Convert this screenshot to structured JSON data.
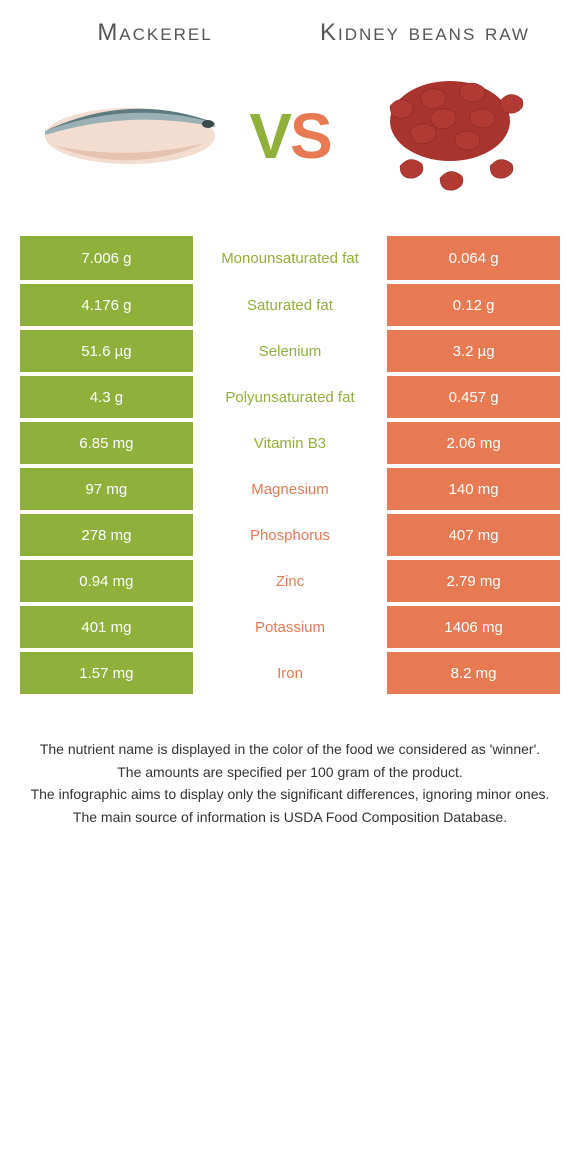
{
  "colors": {
    "left_bg": "#8fb03a",
    "right_bg": "#e77a52",
    "left_text": "#ffffff",
    "right_text": "#ffffff",
    "mid_bg": "#ffffff",
    "page_bg": "#ffffff",
    "heading_color": "#555555",
    "footer_color": "#333333"
  },
  "header": {
    "left_title": "Mackerel",
    "right_title": "Kidney beans raw"
  },
  "vs": {
    "v": "V",
    "s": "S"
  },
  "table": {
    "rows": [
      {
        "left": "7.006 g",
        "name": "Monounsaturated fat",
        "right": "0.064 g",
        "winner": "left"
      },
      {
        "left": "4.176 g",
        "name": "Saturated fat",
        "right": "0.12 g",
        "winner": "left"
      },
      {
        "left": "51.6 µg",
        "name": "Selenium",
        "right": "3.2 µg",
        "winner": "left"
      },
      {
        "left": "4.3 g",
        "name": "Polyunsaturated fat",
        "right": "0.457 g",
        "winner": "left"
      },
      {
        "left": "6.85 mg",
        "name": "Vitamin B3",
        "right": "2.06 mg",
        "winner": "left"
      },
      {
        "left": "97 mg",
        "name": "Magnesium",
        "right": "140 mg",
        "winner": "right"
      },
      {
        "left": "278 mg",
        "name": "Phosphorus",
        "right": "407 mg",
        "winner": "right"
      },
      {
        "left": "0.94 mg",
        "name": "Zinc",
        "right": "2.79 mg",
        "winner": "right"
      },
      {
        "left": "401 mg",
        "name": "Potassium",
        "right": "1406 mg",
        "winner": "right"
      },
      {
        "left": "1.57 mg",
        "name": "Iron",
        "right": "8.2 mg",
        "winner": "right"
      }
    ]
  },
  "footer": {
    "l1": "The nutrient name is displayed in the color of the food we considered as 'winner'.",
    "l2": "The amounts are specified per 100 gram of the product.",
    "l3": "The infographic aims to display only the significant differences, ignoring minor ones.",
    "l4": "The main source of information is USDA Food Composition Database."
  }
}
